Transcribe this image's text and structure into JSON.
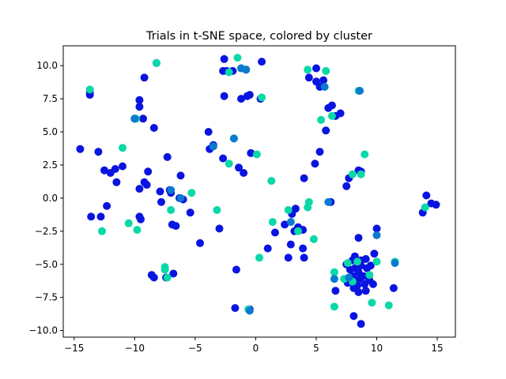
{
  "chart_data": {
    "type": "scatter",
    "title": "Trials in t-SNE space, colored by cluster",
    "xlabel": "",
    "ylabel": "",
    "xlim": [
      -15.9,
      16.5
    ],
    "ylim": [
      -10.5,
      11.5
    ],
    "xticks": [
      -15,
      -10,
      -5,
      0,
      5,
      10,
      15
    ],
    "yticks": [
      -10.0,
      -7.5,
      -5.0,
      -2.5,
      0.0,
      2.5,
      5.0,
      7.5,
      10.0
    ],
    "grid": false,
    "legend": "none",
    "colors": {
      "cluster_a": "#0a14e0",
      "cluster_b": "#0ad8a8",
      "cluster_mix": "#0a7ad0"
    },
    "series": [
      {
        "color": "#0a14e0",
        "points": [
          [
            -14.5,
            3.7
          ],
          [
            -13.7,
            8.0
          ],
          [
            -13.7,
            7.8
          ],
          [
            -13.6,
            -1.4
          ],
          [
            -13.0,
            3.5
          ],
          [
            -12.8,
            -1.4
          ],
          [
            -12.5,
            2.1
          ],
          [
            -12.3,
            -0.6
          ],
          [
            -12.0,
            1.9
          ],
          [
            -11.6,
            2.2
          ],
          [
            -11.5,
            1.2
          ],
          [
            -11.0,
            2.4
          ],
          [
            -10.0,
            6.0
          ],
          [
            -9.6,
            7.4
          ],
          [
            -9.6,
            6.9
          ],
          [
            -9.6,
            0.7
          ],
          [
            -9.6,
            -1.4
          ],
          [
            -9.5,
            -1.6
          ],
          [
            -9.3,
            6.0
          ],
          [
            -9.2,
            9.1
          ],
          [
            -9.2,
            1.2
          ],
          [
            -9.0,
            1.0
          ],
          [
            -8.9,
            2.0
          ],
          [
            -8.6,
            -5.8
          ],
          [
            -8.4,
            5.3
          ],
          [
            -8.2,
            10.2
          ],
          [
            -8.4,
            -6.0
          ],
          [
            -7.9,
            0.5
          ],
          [
            -7.8,
            -0.3
          ],
          [
            -7.4,
            -6.0
          ],
          [
            -7.3,
            3.1
          ],
          [
            -7.1,
            0.6
          ],
          [
            -7.0,
            0.4
          ],
          [
            -6.9,
            -2.0
          ],
          [
            -6.8,
            -5.7
          ],
          [
            -6.6,
            -2.1
          ],
          [
            -6.2,
            1.7
          ],
          [
            -6.3,
            0.0
          ],
          [
            -6.0,
            -0.1
          ],
          [
            -5.4,
            -1.1
          ],
          [
            -4.6,
            -3.4
          ],
          [
            -3.9,
            5.0
          ],
          [
            -3.8,
            3.7
          ],
          [
            -3.5,
            4.0
          ],
          [
            -3.0,
            -2.3
          ],
          [
            -2.7,
            9.6
          ],
          [
            -2.6,
            10.5
          ],
          [
            -2.7,
            3.0
          ],
          [
            -2.4,
            9.6
          ],
          [
            -2.6,
            7.7
          ],
          [
            -1.9,
            9.6
          ],
          [
            -1.7,
            -8.3
          ],
          [
            -1.6,
            -5.4
          ],
          [
            -1.4,
            2.3
          ],
          [
            -1.2,
            7.5
          ],
          [
            -1.0,
            1.9
          ],
          [
            -0.8,
            9.7
          ],
          [
            -0.7,
            7.7
          ],
          [
            -0.5,
            7.8
          ],
          [
            -0.4,
            3.4
          ],
          [
            -0.5,
            -8.4
          ],
          [
            0.5,
            10.3
          ],
          [
            0.4,
            7.5
          ],
          [
            1.0,
            -3.8
          ],
          [
            1.6,
            -2.6
          ],
          [
            2.4,
            -2.0
          ],
          [
            2.7,
            -4.5
          ],
          [
            2.9,
            -3.5
          ],
          [
            3.0,
            -1.2
          ],
          [
            3.2,
            -2.5
          ],
          [
            3.3,
            -0.8
          ],
          [
            3.5,
            -2.2
          ],
          [
            3.9,
            -3.8
          ],
          [
            3.9,
            -2.4
          ],
          [
            4.0,
            1.5
          ],
          [
            4.0,
            -4.5
          ],
          [
            4.4,
            9.1
          ],
          [
            4.9,
            2.6
          ],
          [
            5.0,
            8.8
          ],
          [
            5.0,
            9.8
          ],
          [
            5.3,
            3.5
          ],
          [
            5.3,
            8.4
          ],
          [
            5.6,
            8.9
          ],
          [
            5.8,
            5.1
          ],
          [
            6.0,
            6.8
          ],
          [
            6.2,
            -0.3
          ],
          [
            6.3,
            7.0
          ],
          [
            6.6,
            6.2
          ],
          [
            6.6,
            -7.0
          ],
          [
            7.0,
            6.4
          ],
          [
            7.5,
            0.9
          ],
          [
            7.7,
            1.5
          ],
          [
            7.5,
            -5.0
          ],
          [
            7.6,
            -6.4
          ],
          [
            7.8,
            -5.4
          ],
          [
            8.0,
            -4.7
          ],
          [
            8.0,
            -5.9
          ],
          [
            8.1,
            -6.8
          ],
          [
            8.2,
            -5.3
          ],
          [
            8.2,
            -4.4
          ],
          [
            8.3,
            -6.2
          ],
          [
            8.4,
            -6.6
          ],
          [
            8.5,
            -5.6
          ],
          [
            8.5,
            -7.1
          ],
          [
            8.5,
            -3.0
          ],
          [
            8.7,
            -5.1
          ],
          [
            8.7,
            -4.7
          ],
          [
            8.6,
            -6.1
          ],
          [
            8.9,
            -5.9
          ],
          [
            9.0,
            -6.5
          ],
          [
            9.1,
            -7.0
          ],
          [
            8.5,
            2.1
          ],
          [
            8.7,
            2.0
          ],
          [
            9.1,
            -4.6
          ],
          [
            9.2,
            -5.3
          ],
          [
            9.4,
            -6.2
          ],
          [
            9.5,
            -5.1
          ],
          [
            9.7,
            -6.5
          ],
          [
            9.8,
            -4.2
          ],
          [
            10.0,
            -2.3
          ],
          [
            11.4,
            -6.8
          ],
          [
            8.1,
            -8.9
          ],
          [
            8.7,
            -9.5
          ],
          [
            13.8,
            -1.1
          ],
          [
            14.1,
            0.2
          ],
          [
            14.5,
            -0.4
          ],
          [
            14.9,
            -0.5
          ]
        ]
      },
      {
        "color": "#0ad8a8",
        "points": [
          [
            -13.7,
            8.2
          ],
          [
            -12.7,
            -2.5
          ],
          [
            -11.0,
            3.8
          ],
          [
            -10.5,
            -1.9
          ],
          [
            -9.8,
            -2.4
          ],
          [
            -9.9,
            6.0
          ],
          [
            -8.2,
            10.2
          ],
          [
            -7.5,
            -5.2
          ],
          [
            -7.5,
            -5.4
          ],
          [
            -7.0,
            -0.9
          ],
          [
            -7.3,
            -6.0
          ],
          [
            -5.3,
            0.4
          ],
          [
            -3.2,
            -0.9
          ],
          [
            -2.2,
            2.6
          ],
          [
            -1.8,
            4.5
          ],
          [
            -1.5,
            10.6
          ],
          [
            -1.2,
            9.8
          ],
          [
            -2.2,
            9.5
          ],
          [
            0.1,
            3.3
          ],
          [
            0.3,
            -4.5
          ],
          [
            0.5,
            7.6
          ],
          [
            1.3,
            1.3
          ],
          [
            1.4,
            -1.8
          ],
          [
            2.7,
            -0.9
          ],
          [
            3.5,
            -2.5
          ],
          [
            4.3,
            -0.7
          ],
          [
            4.3,
            9.7
          ],
          [
            4.8,
            -3.1
          ],
          [
            5.4,
            5.9
          ],
          [
            5.8,
            9.6
          ],
          [
            6.3,
            6.2
          ],
          [
            6.5,
            -5.6
          ],
          [
            6.5,
            -8.2
          ],
          [
            7.3,
            -6.1
          ],
          [
            7.7,
            -6.0
          ],
          [
            8.0,
            -6.3
          ],
          [
            8.0,
            1.8
          ],
          [
            8.4,
            -4.8
          ],
          [
            8.5,
            8.1
          ],
          [
            8.7,
            1.8
          ],
          [
            9.0,
            3.3
          ],
          [
            9.4,
            -5.8
          ],
          [
            9.6,
            -7.9
          ],
          [
            10.0,
            -4.8
          ],
          [
            11.0,
            -8.1
          ],
          [
            11.5,
            -4.8
          ],
          [
            14.0,
            -0.7
          ],
          [
            4.4,
            -0.3
          ],
          [
            -0.6,
            -8.4
          ],
          [
            7.6,
            -4.9
          ]
        ]
      },
      {
        "color": "#0a7ad0",
        "points": [
          [
            -10.0,
            6.0
          ],
          [
            -3.5,
            3.9
          ],
          [
            -1.8,
            4.5
          ],
          [
            -1.2,
            9.8
          ],
          [
            -0.8,
            9.7
          ],
          [
            2.9,
            -1.8
          ],
          [
            5.7,
            8.4
          ],
          [
            6.5,
            -6.1
          ],
          [
            7.7,
            -6.0
          ],
          [
            8.6,
            8.1
          ],
          [
            10.0,
            -2.8
          ],
          [
            11.5,
            -4.9
          ],
          [
            6.0,
            -0.3
          ],
          [
            -7.0,
            0.6
          ],
          [
            -6.2,
            0.0
          ],
          [
            -0.5,
            -8.5
          ]
        ]
      }
    ]
  }
}
